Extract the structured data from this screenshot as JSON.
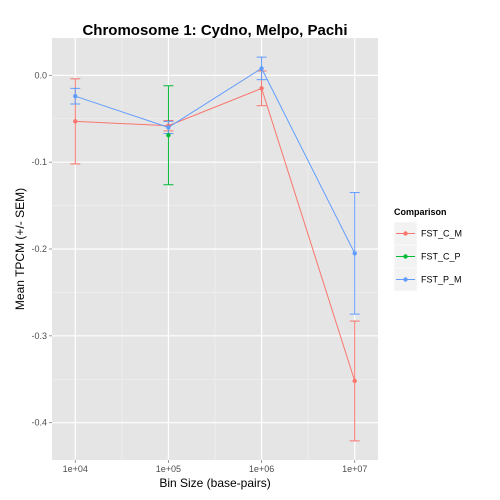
{
  "chart_data": {
    "type": "line",
    "title": "Chromosome 1: Cydno, Melpo, Pachi",
    "xlabel": "Bin Size (base-pairs)",
    "ylabel": "Mean TPCM (+/- SEM)",
    "x_scale": "log10",
    "categories": [
      "1e+04",
      "1e+05",
      "1e+06",
      "1e+07"
    ],
    "x": [
      10000,
      100000,
      1000000,
      10000000
    ],
    "yticks": [
      0.0,
      -0.1,
      -0.2,
      -0.3,
      -0.4
    ],
    "ytick_labels": [
      "0.0",
      "-0.1",
      "-0.2",
      "-0.3",
      "-0.4"
    ],
    "ylim": [
      -0.443,
      0.043
    ],
    "grid": true,
    "legend": {
      "title": "Comparison",
      "position": "right"
    },
    "series": [
      {
        "name": "FST_C_M",
        "color": "#F8766D",
        "values": [
          -0.053,
          -0.058,
          -0.015,
          -0.352
        ],
        "err_low": [
          -0.102,
          -0.064,
          -0.035,
          -0.421
        ],
        "err_high": [
          -0.004,
          -0.052,
          0.005,
          -0.283
        ]
      },
      {
        "name": "FST_C_P",
        "color": "#00BA38",
        "values": [
          null,
          -0.069,
          null,
          null
        ],
        "err_low": [
          null,
          -0.126,
          null,
          null
        ],
        "err_high": [
          null,
          -0.012,
          null,
          null
        ]
      },
      {
        "name": "FST_P_M",
        "color": "#619CFF",
        "values": [
          -0.024,
          -0.06,
          0.008,
          -0.205
        ],
        "err_low": [
          -0.033,
          -0.067,
          -0.005,
          -0.275
        ],
        "err_high": [
          -0.015,
          -0.053,
          0.021,
          -0.135
        ]
      }
    ]
  }
}
